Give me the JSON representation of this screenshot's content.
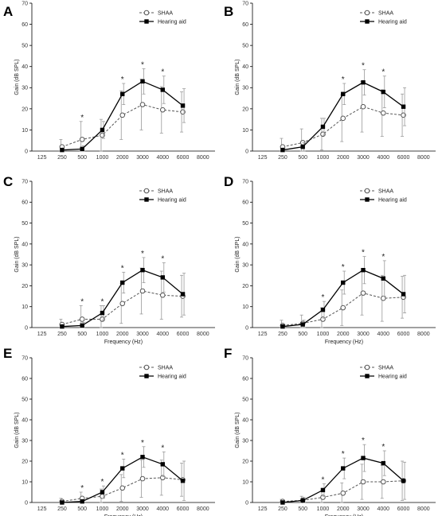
{
  "figure": {
    "legend": {
      "shaa": "SHAA",
      "hearing_aid": "Hearing aid"
    },
    "colors": {
      "shaa": "#555555",
      "hearing_aid": "#000000",
      "error": "#9a9a9a",
      "axis": "#000000"
    }
  },
  "chart_data": [
    {
      "panel": "A",
      "type": "line",
      "title": "",
      "xlabel": "",
      "ylabel": "Gain (dB SPL)",
      "x_categories": [
        "125",
        "250",
        "500",
        "1000",
        "2000",
        "3000",
        "4000",
        "6000",
        "8000"
      ],
      "ylim": [
        0,
        70
      ],
      "yticks": [
        0,
        10,
        20,
        30,
        40,
        50,
        60,
        70
      ],
      "series": [
        {
          "name": "SHAA",
          "x": [
            "250",
            "500",
            "1000",
            "2000",
            "3000",
            "4000",
            "6000"
          ],
          "y": [
            2,
            5.5,
            7.5,
            17,
            22,
            19.5,
            18.5
          ],
          "err": [
            3.5,
            8.5,
            7.5,
            11.5,
            12,
            11,
            9.5
          ]
        },
        {
          "name": "Hearing aid",
          "x": [
            "250",
            "500",
            "1000",
            "2000",
            "3000",
            "4000",
            "6000"
          ],
          "y": [
            0.5,
            1,
            10,
            27,
            33,
            29,
            21.5
          ],
          "err": [
            1,
            1.5,
            4,
            5,
            6,
            6.5,
            8
          ]
        }
      ],
      "significance": [
        "500",
        "2000",
        "3000",
        "4000"
      ]
    },
    {
      "panel": "B",
      "type": "line",
      "title": "",
      "xlabel": "",
      "ylabel": "Gain (dB SPL)",
      "x_categories": [
        "125",
        "250",
        "500",
        "1000",
        "2000",
        "3000",
        "4000",
        "6000",
        "8000"
      ],
      "ylim": [
        0,
        70
      ],
      "yticks": [
        0,
        10,
        20,
        30,
        40,
        50,
        60,
        70
      ],
      "series": [
        {
          "name": "SHAA",
          "x": [
            "250",
            "500",
            "1000",
            "2000",
            "3000",
            "4000",
            "6000"
          ],
          "y": [
            2,
            4,
            8,
            15.5,
            21,
            18,
            17
          ],
          "err": [
            4,
            6.5,
            7.5,
            11,
            12,
            11,
            10
          ]
        },
        {
          "name": "Hearing aid",
          "x": [
            "250",
            "500",
            "1000",
            "2000",
            "3000",
            "4000",
            "6000"
          ],
          "y": [
            0.5,
            2,
            11.5,
            27,
            32.5,
            28,
            21
          ],
          "err": [
            1,
            2,
            4,
            5,
            6,
            7.5,
            9
          ]
        }
      ],
      "significance": [
        "2000",
        "3000",
        "4000"
      ]
    },
    {
      "panel": "C",
      "type": "line",
      "title": "",
      "xlabel": "Frequency (Hz)",
      "ylabel": "Gain (dB SPL)",
      "x_categories": [
        "125",
        "250",
        "500",
        "1000",
        "2000",
        "3000",
        "4000",
        "6000",
        "8000"
      ],
      "ylim": [
        0,
        70
      ],
      "yticks": [
        0,
        10,
        20,
        30,
        40,
        50,
        60,
        70
      ],
      "series": [
        {
          "name": "SHAA",
          "x": [
            "250",
            "500",
            "1000",
            "2000",
            "3000",
            "4000",
            "6000"
          ],
          "y": [
            1.5,
            4,
            4,
            11.5,
            17.5,
            15.5,
            15
          ],
          "err": [
            2.5,
            6.5,
            6.5,
            9.5,
            11,
            11.5,
            10
          ]
        },
        {
          "name": "Hearing aid",
          "x": [
            "250",
            "500",
            "1000",
            "2000",
            "3000",
            "4000",
            "6000"
          ],
          "y": [
            0.5,
            1,
            7,
            21.5,
            27.5,
            24,
            16
          ],
          "err": [
            1,
            1.5,
            3.5,
            5,
            6,
            7,
            10
          ]
        }
      ],
      "significance": [
        "500",
        "1000",
        "2000",
        "3000",
        "4000"
      ]
    },
    {
      "panel": "D",
      "type": "line",
      "title": "",
      "xlabel": "Frequency (Hz)",
      "ylabel": "Gain (dB SPL)",
      "x_categories": [
        "125",
        "250",
        "500",
        "1000",
        "2000",
        "3000",
        "4000",
        "6000",
        "8000"
      ],
      "ylim": [
        0,
        70
      ],
      "yticks": [
        0,
        10,
        20,
        30,
        40,
        50,
        60,
        70
      ],
      "series": [
        {
          "name": "SHAA",
          "x": [
            "250",
            "500",
            "1000",
            "2000",
            "3000",
            "4000",
            "6000"
          ],
          "y": [
            1,
            2,
            4,
            9.5,
            16.5,
            14,
            14.5
          ],
          "err": [
            2.5,
            4,
            5.5,
            8.5,
            10.5,
            11,
            10
          ]
        },
        {
          "name": "Hearing aid",
          "x": [
            "250",
            "500",
            "1000",
            "2000",
            "3000",
            "4000",
            "6000"
          ],
          "y": [
            0.5,
            1.5,
            8.5,
            21.5,
            27.5,
            23.5,
            16
          ],
          "err": [
            1,
            2,
            4,
            5.5,
            6.5,
            8.5,
            9
          ]
        }
      ],
      "significance": [
        "1000",
        "2000",
        "3000",
        "4000"
      ]
    },
    {
      "panel": "E",
      "type": "line",
      "title": "",
      "xlabel": "Frequency (Hz)",
      "ylabel": "Gain (dB SPL)",
      "x_categories": [
        "125",
        "250",
        "500",
        "1000",
        "2000",
        "3000",
        "4000",
        "6000",
        "8000"
      ],
      "ylim": [
        0,
        70
      ],
      "yticks": [
        0,
        10,
        20,
        30,
        40,
        50,
        60,
        70
      ],
      "series": [
        {
          "name": "SHAA",
          "x": [
            "250",
            "500",
            "1000",
            "2000",
            "3000",
            "4000",
            "6000"
          ],
          "y": [
            0.5,
            2,
            3,
            7,
            11.5,
            12,
            11
          ],
          "err": [
            1.5,
            3,
            3.5,
            6.5,
            9,
            8.5,
            8
          ]
        },
        {
          "name": "Hearing aid",
          "x": [
            "250",
            "500",
            "1000",
            "2000",
            "3000",
            "4000",
            "6000"
          ],
          "y": [
            0,
            0.5,
            5,
            16.5,
            22,
            18.5,
            10.5
          ],
          "err": [
            0.5,
            1,
            3,
            4.5,
            5,
            6,
            9.5
          ]
        }
      ],
      "significance": [
        "500",
        "1000",
        "2000",
        "3000",
        "4000"
      ]
    },
    {
      "panel": "F",
      "type": "line",
      "title": "",
      "xlabel": "Frequency (Hz)",
      "ylabel": "Gain (dB SPL)",
      "x_categories": [
        "125",
        "250",
        "500",
        "1000",
        "2000",
        "3000",
        "4000",
        "6000",
        "8000"
      ],
      "ylim": [
        0,
        70
      ],
      "yticks": [
        0,
        10,
        20,
        30,
        40,
        50,
        60,
        70
      ],
      "series": [
        {
          "name": "SHAA",
          "x": [
            "250",
            "500",
            "1000",
            "2000",
            "3000",
            "4000",
            "6000"
          ],
          "y": [
            0.5,
            1,
            2.5,
            4.5,
            10,
            10,
            10.5
          ],
          "err": [
            1,
            2,
            3,
            5,
            8.5,
            8,
            9.5
          ]
        },
        {
          "name": "Hearing aid",
          "x": [
            "250",
            "500",
            "1000",
            "2000",
            "3000",
            "4000",
            "6000"
          ],
          "y": [
            0,
            1,
            6,
            16.5,
            21.5,
            19,
            10.5
          ],
          "err": [
            0.5,
            1.5,
            3,
            5,
            6.5,
            6,
            9
          ]
        }
      ],
      "significance": [
        "1000",
        "2000",
        "3000",
        "4000"
      ]
    }
  ]
}
